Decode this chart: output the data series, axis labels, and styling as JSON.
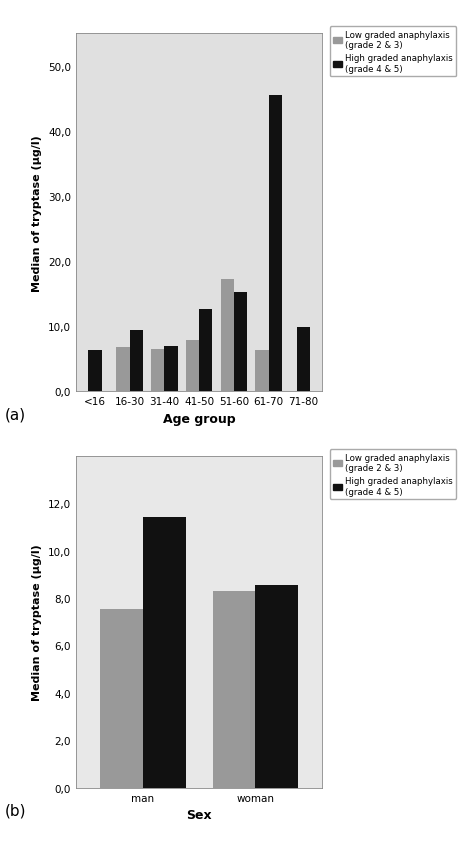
{
  "chart_a": {
    "categories": [
      "<16",
      "16-30",
      "31-40",
      "41-50",
      "51-60",
      "61-70",
      "71-80"
    ],
    "low_grade": [
      null,
      6.8,
      6.5,
      7.8,
      17.2,
      6.3,
      null
    ],
    "high_grade": [
      6.3,
      9.4,
      7.0,
      12.7,
      15.2,
      45.5,
      9.9
    ],
    "ylabel": "Median of tryptase (µg/l)",
    "xlabel": "Age group",
    "ylim": [
      0,
      55
    ],
    "yticks": [
      0.0,
      10.0,
      20.0,
      30.0,
      40.0,
      50.0
    ],
    "ytick_labels": [
      "0,0",
      "10,0",
      "20,0",
      "30,0",
      "40,0",
      "50,0"
    ],
    "legend_low": "Low graded anaphylaxis\n(grade 2 & 3)",
    "legend_high": "High graded anaphylaxis\n(grade 4 & 5)",
    "color_low": "#999999",
    "color_high": "#111111",
    "bg_color": "#e0e0e0",
    "bar_width": 0.38,
    "label": "(a)"
  },
  "chart_b": {
    "categories": [
      "man",
      "woman"
    ],
    "low_grade": [
      7.55,
      8.3
    ],
    "high_grade": [
      11.4,
      8.55
    ],
    "ylabel": "Median of tryptase (µg/l)",
    "xlabel": "Sex",
    "ylim": [
      0,
      14
    ],
    "yticks": [
      0.0,
      2.0,
      4.0,
      6.0,
      8.0,
      10.0,
      12.0
    ],
    "ytick_labels": [
      "0,0",
      "2,0",
      "4,0",
      "6,0",
      "8,0",
      "10,0",
      "12,0"
    ],
    "legend_low": "Low graded anaphylaxis\n(grade 2 & 3)",
    "legend_high": "High graded anaphylaxis\n(grade 4 & 5)",
    "color_low": "#999999",
    "color_high": "#111111",
    "bg_color": "#e8e8e8",
    "bar_width": 0.38,
    "label": "(b)"
  }
}
